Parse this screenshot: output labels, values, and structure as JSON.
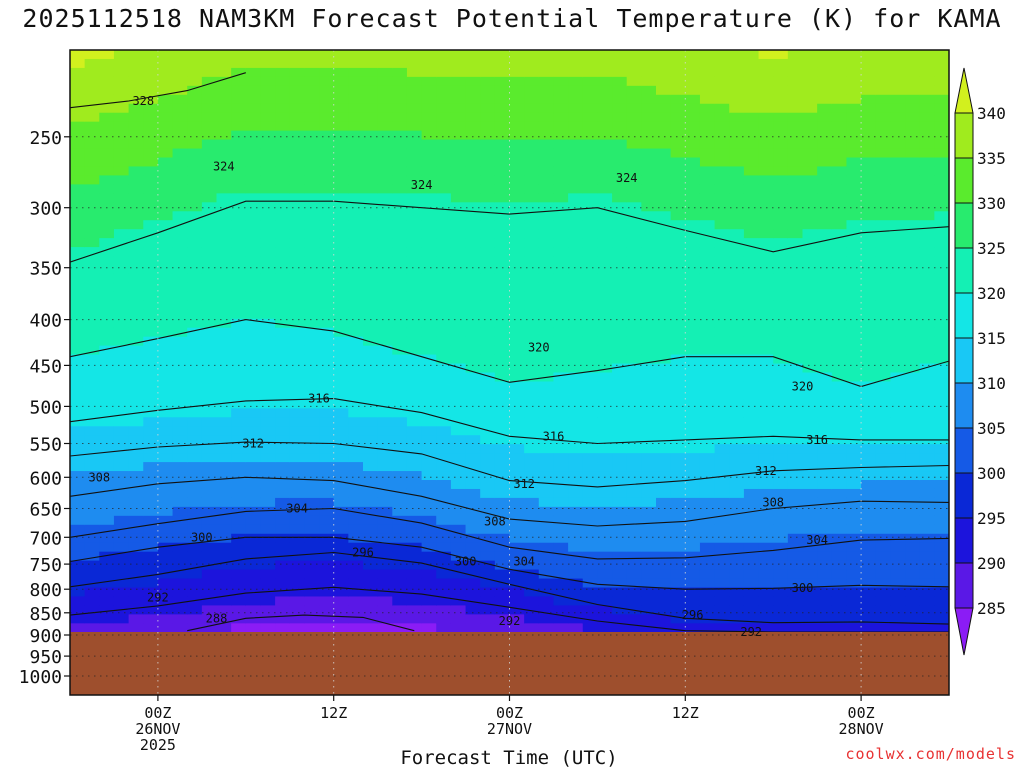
{
  "title": "2025112518 NAM3KM Forecast Potential Temperature (K) for KAMA",
  "credit": "coolwx.com/models",
  "chart_data": {
    "type": "heatmap",
    "title": "2025112518 NAM3KM Forecast Potential Temperature (K) for KAMA",
    "xlabel": "Forecast Time (UTC)",
    "ylabel": "",
    "y_scale": "log",
    "y_inverted": true,
    "ylim": [
      1050,
      200
    ],
    "xlim": [
      -6,
      54
    ],
    "grid": true,
    "y_ticks": [
      250,
      300,
      350,
      400,
      450,
      500,
      550,
      600,
      650,
      700,
      750,
      800,
      850,
      900,
      950,
      1000
    ],
    "x_ticks": [
      {
        "hour": 0,
        "label": "00Z",
        "date": "26NOV",
        "year": "2025"
      },
      {
        "hour": 12,
        "label": "12Z",
        "date": "",
        "year": ""
      },
      {
        "hour": 24,
        "label": "00Z",
        "date": "27NOV",
        "year": ""
      },
      {
        "hour": 36,
        "label": "12Z",
        "date": "",
        "year": ""
      },
      {
        "hour": 48,
        "label": "00Z",
        "date": "28NOV",
        "year": ""
      }
    ],
    "surface_pressure": 893,
    "colorbar": {
      "levels": [
        285,
        290,
        295,
        300,
        305,
        310,
        315,
        320,
        325,
        330,
        335,
        340
      ],
      "colors": [
        "#8b1cf5",
        "#5a18e6",
        "#1c14dc",
        "#0a28d6",
        "#155ae6",
        "#1e8cf0",
        "#19c8f5",
        "#14e6e6",
        "#14f0b4",
        "#28eb6e",
        "#5aeb2d",
        "#a0eb1e",
        "#d2f01e"
      ]
    },
    "contour_interval": 4,
    "series": [
      {
        "level": 288,
        "x": [
          2,
          6,
          10,
          14,
          17.5
        ],
        "y": [
          890,
          862,
          855,
          860,
          890
        ]
      },
      {
        "level": 292,
        "x": [
          -6,
          0,
          6,
          12,
          18,
          24,
          30,
          36,
          42,
          48,
          54
        ],
        "y": [
          855,
          835,
          808,
          796,
          810,
          838,
          868,
          890,
          893,
          893,
          893
        ]
      },
      {
        "level": 296,
        "x": [
          -6,
          0,
          6,
          12,
          18,
          24,
          30,
          36,
          42,
          48,
          54
        ],
        "y": [
          795,
          770,
          740,
          728,
          748,
          790,
          832,
          862,
          872,
          870,
          875
        ]
      },
      {
        "level": 300,
        "x": [
          -6,
          0,
          6,
          12,
          18,
          24,
          30,
          36,
          42,
          48,
          54
        ],
        "y": [
          745,
          718,
          700,
          700,
          718,
          760,
          790,
          800,
          798,
          792,
          795
        ]
      },
      {
        "level": 304,
        "x": [
          -6,
          0,
          6,
          12,
          18,
          24,
          30,
          36,
          42,
          48,
          54
        ],
        "y": [
          700,
          676,
          655,
          650,
          675,
          718,
          740,
          738,
          724,
          705,
          702
        ]
      },
      {
        "level": 308,
        "x": [
          -6,
          0,
          6,
          12,
          18,
          24,
          30,
          36,
          42,
          48,
          54
        ],
        "y": [
          630,
          610,
          600,
          605,
          630,
          668,
          680,
          672,
          650,
          638,
          640
        ]
      },
      {
        "level": 312,
        "x": [
          -6,
          0,
          6,
          12,
          18,
          24,
          30,
          36,
          42,
          48,
          54
        ],
        "y": [
          568,
          555,
          548,
          550,
          565,
          605,
          615,
          605,
          590,
          585,
          582
        ]
      },
      {
        "level": 316,
        "x": [
          -6,
          0,
          6,
          12,
          18,
          24,
          30,
          36,
          42,
          48,
          54
        ],
        "y": [
          520,
          505,
          493,
          490,
          508,
          540,
          550,
          545,
          540,
          545,
          545
        ]
      },
      {
        "level": 320,
        "x": [
          -6,
          0,
          6,
          12,
          18,
          24,
          30,
          36,
          42,
          48,
          54
        ],
        "y": [
          440,
          420,
          400,
          412,
          440,
          470,
          456,
          440,
          440,
          475,
          445
        ]
      },
      {
        "level": 324,
        "x": [
          -6,
          0,
          6,
          12,
          18,
          24,
          30,
          36,
          42,
          48,
          54
        ],
        "y": [
          345,
          320,
          295,
          295,
          300,
          305,
          300,
          318,
          336,
          320,
          315
        ]
      },
      {
        "level": 328,
        "x": [
          -6,
          -2,
          2,
          6
        ],
        "y": [
          232,
          228,
          222,
          212
        ]
      }
    ],
    "contour_labels": [
      {
        "text": "288",
        "hour": 4,
        "p": 862
      },
      {
        "text": "292",
        "hour": 0,
        "p": 817
      },
      {
        "text": "292",
        "hour": 24,
        "p": 868
      },
      {
        "text": "292",
        "hour": 40.5,
        "p": 893
      },
      {
        "text": "296",
        "hour": 14,
        "p": 728
      },
      {
        "text": "296",
        "hour": 36.5,
        "p": 855
      },
      {
        "text": "300",
        "hour": 3,
        "p": 700
      },
      {
        "text": "300",
        "hour": 21,
        "p": 745
      },
      {
        "text": "300",
        "hour": 44,
        "p": 797
      },
      {
        "text": "304",
        "hour": 25,
        "p": 745
      },
      {
        "text": "304",
        "hour": 9.5,
        "p": 650
      },
      {
        "text": "304",
        "hour": 45,
        "p": 705
      },
      {
        "text": "308",
        "hour": -4,
        "p": 600
      },
      {
        "text": "308",
        "hour": 23,
        "p": 672
      },
      {
        "text": "308",
        "hour": 42,
        "p": 640
      },
      {
        "text": "312",
        "hour": 6.5,
        "p": 550
      },
      {
        "text": "312",
        "hour": 25,
        "p": 610
      },
      {
        "text": "312",
        "hour": 41.5,
        "p": 590
      },
      {
        "text": "316",
        "hour": 11,
        "p": 490
      },
      {
        "text": "316",
        "hour": 27,
        "p": 540
      },
      {
        "text": "316",
        "hour": 45,
        "p": 545
      },
      {
        "text": "320",
        "hour": 26,
        "p": 430
      },
      {
        "text": "320",
        "hour": 44,
        "p": 475
      },
      {
        "text": "324",
        "hour": 4.5,
        "p": 270
      },
      {
        "text": "324",
        "hour": 18,
        "p": 283
      },
      {
        "text": "324",
        "hour": 32,
        "p": 278
      },
      {
        "text": "328",
        "hour": -1,
        "p": 228
      }
    ]
  }
}
